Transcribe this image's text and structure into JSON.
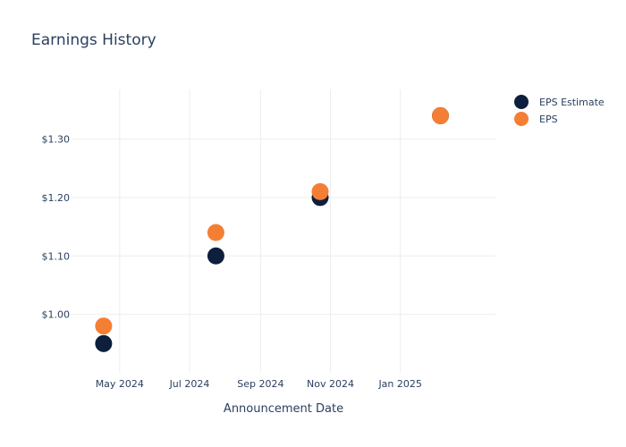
{
  "chart_data": {
    "type": "scatter",
    "title": "Earnings History",
    "xlabel": "Announcement Date",
    "ylabel": "",
    "x_ticks": [
      "May 2024",
      "Jul 2024",
      "Sep 2024",
      "Nov 2024",
      "Jan 2025"
    ],
    "y_ticks": [
      "$1.00",
      "$1.10",
      "$1.20",
      "$1.30"
    ],
    "xlim": [
      "2024-03-20",
      "2025-03-25"
    ],
    "ylim": [
      0.9,
      1.385
    ],
    "grid": true,
    "legend_position": "top-right",
    "series": [
      {
        "name": "EPS Estimate",
        "color": "#0d1f3c",
        "points": [
          {
            "x": "2024-04-17",
            "y": 0.95
          },
          {
            "x": "2024-07-24",
            "y": 1.1
          },
          {
            "x": "2024-10-23",
            "y": 1.2
          },
          {
            "x": "2025-02-05",
            "y": 1.34
          }
        ]
      },
      {
        "name": "EPS",
        "color": "#f47f34",
        "points": [
          {
            "x": "2024-04-17",
            "y": 0.98
          },
          {
            "x": "2024-07-24",
            "y": 1.14
          },
          {
            "x": "2024-10-23",
            "y": 1.21
          },
          {
            "x": "2025-02-05",
            "y": 1.34
          }
        ]
      }
    ]
  }
}
